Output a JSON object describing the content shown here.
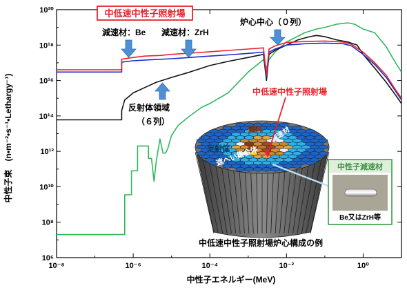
{
  "chart_data": {
    "type": "line",
    "xlabel": "中性子エネルギー(MeV)",
    "ylabel": "中性子束　(n•m⁻²•s⁻¹•Lethargy⁻¹)",
    "xscale": "log",
    "yscale": "log",
    "xlim": [
      1e-08,
      10
    ],
    "ylim": [
      1000000.0,
      1e+20
    ],
    "x_ticks": [
      {
        "value": 1e-08,
        "label": "10⁻⁸"
      },
      {
        "value": 1e-06,
        "label": "10⁻⁶"
      },
      {
        "value": 0.0001,
        "label": "10⁻⁴"
      },
      {
        "value": 0.01,
        "label": "10⁻²"
      },
      {
        "value": 1,
        "label": "10⁰"
      }
    ],
    "y_ticks": [
      {
        "value": 1000000.0,
        "label": "10⁶"
      },
      {
        "value": 100000000.0,
        "label": "10⁸"
      },
      {
        "value": 10000000000.0,
        "label": "10¹⁰"
      },
      {
        "value": 1000000000000.0,
        "label": "10¹²"
      },
      {
        "value": 100000000000000.0,
        "label": "10¹⁴"
      },
      {
        "value": 1e+16,
        "label": "10¹⁶"
      },
      {
        "value": 1e+18,
        "label": "10¹⁸"
      },
      {
        "value": 1e+20,
        "label": "10²⁰"
      }
    ],
    "series": [
      {
        "name": "",
        "color": "#e8202a",
        "points": [
          [
            1e-08,
            4e+16
          ],
          [
            5e-07,
            4e+16
          ],
          [
            5e-07,
            1.6e+17
          ],
          [
            1e-06,
            2e+17
          ],
          [
            2e-06,
            2.4e+17
          ],
          [
            5e-06,
            2.6e+17
          ],
          [
            1e-05,
            3e+17
          ],
          [
            3e-05,
            3.5e+17
          ],
          [
            0.0001,
            4.2e+17
          ],
          [
            0.0003,
            5e+17
          ],
          [
            0.001,
            6e+17
          ],
          [
            0.0025,
            7e+17
          ],
          [
            0.003,
            2e+16
          ],
          [
            0.0035,
            6e+17
          ],
          [
            0.005,
            9e+17
          ],
          [
            0.01,
            1.4e+18
          ],
          [
            0.03,
            1.6e+18
          ],
          [
            0.1,
            1.7e+18
          ],
          [
            0.3,
            1.5e+18
          ],
          [
            0.5,
            1.1e+18
          ],
          [
            1,
            4e+17
          ],
          [
            2,
            1e+17
          ],
          [
            4,
            2e+16
          ],
          [
            7,
            3000000000000000.0
          ],
          [
            10,
            1000000000000000.0
          ]
        ]
      },
      {
        "name": "",
        "color": "#1a2ccc",
        "points": [
          [
            1e-08,
            3e+16
          ],
          [
            5e-07,
            3e+16
          ],
          [
            5e-07,
            1.1e+17
          ],
          [
            1e-06,
            1.3e+17
          ],
          [
            3e-06,
            1.5e+17
          ],
          [
            1e-05,
            1.7e+17
          ],
          [
            3e-05,
            2e+17
          ],
          [
            0.0001,
            2.4e+17
          ],
          [
            0.0003,
            2.8e+17
          ],
          [
            0.001,
            3.4e+17
          ],
          [
            0.0025,
            4e+17
          ],
          [
            0.003,
            1.5e+16
          ],
          [
            0.0035,
            4e+17
          ],
          [
            0.005,
            6e+17
          ],
          [
            0.01,
            1e+18
          ],
          [
            0.03,
            1.2e+18
          ],
          [
            0.1,
            1.3e+18
          ],
          [
            0.3,
            1.2e+18
          ],
          [
            0.5,
            9e+17
          ],
          [
            1,
            3e+17
          ],
          [
            2,
            8e+16
          ],
          [
            4,
            1.5e+16
          ],
          [
            7,
            2500000000000000.0
          ],
          [
            10,
            800000000000000.0
          ]
        ]
      },
      {
        "name": "",
        "color": "#111111",
        "points": [
          [
            1e-08,
            60000000000000.0
          ],
          [
            5e-07,
            60000000000000.0
          ],
          [
            5e-07,
            200000000000000.0
          ],
          [
            6e-07,
            800000000000000.0
          ],
          [
            1e-06,
            2000000000000000.0
          ],
          [
            2e-06,
            4000000000000000.0
          ],
          [
            4e-06,
            8000000000000000.0
          ],
          [
            1e-05,
            1.5e+16
          ],
          [
            3e-05,
            3e+16
          ],
          [
            0.0001,
            7e+16
          ],
          [
            0.0003,
            1.2e+17
          ],
          [
            0.001,
            2e+17
          ],
          [
            0.0025,
            3e+17
          ],
          [
            0.003,
            1e+16
          ],
          [
            0.0035,
            3e+17
          ],
          [
            0.005,
            5e+17
          ],
          [
            0.01,
            1e+18
          ],
          [
            0.02,
            2e+18
          ],
          [
            0.04,
            3e+18
          ],
          [
            0.06,
            3.5e+18
          ],
          [
            0.1,
            3e+18
          ],
          [
            0.2,
            2e+18
          ],
          [
            0.4,
            1.5e+18
          ],
          [
            0.7,
            1e+18
          ],
          [
            1,
            3e+17
          ],
          [
            2,
            5e+16
          ],
          [
            4,
            8000000000000000.0
          ],
          [
            7,
            1500000000000000.0
          ],
          [
            10,
            500000000000000.0
          ]
        ]
      },
      {
        "name": "",
        "color": "#2eb85c",
        "points": [
          [
            1e-08,
            20000000.0
          ],
          [
            6e-07,
            20000000.0
          ],
          [
            6e-07,
            3500000000.0
          ],
          [
            9e-07,
            3500000000.0
          ],
          [
            9e-07,
            80000000000.0
          ],
          [
            1.3e-06,
            80000000000.0
          ],
          [
            1.3e-06,
            2000000000000.0
          ],
          [
            2.5e-06,
            2000000000000.0
          ],
          [
            2.5e-06,
            400000000000.0
          ],
          [
            3e-06,
            400000000000.0
          ],
          [
            3.5e-06,
            20000000000.0
          ],
          [
            4e-06,
            300000000000.0
          ],
          [
            5e-06,
            5000000000000.0
          ],
          [
            6e-06,
            800000000000.0
          ],
          [
            7e-06,
            800000000000.0
          ],
          [
            8e-06,
            1500000000000.0
          ],
          [
            1e-05,
            8000000000000.0
          ],
          [
            1.5e-05,
            30000000000000.0
          ],
          [
            3e-05,
            100000000000000.0
          ],
          [
            6e-05,
            300000000000000.0
          ],
          [
            0.0001,
            500000000000000.0
          ],
          [
            0.0003,
            2000000000000000.0
          ],
          [
            0.001,
            3e+16
          ],
          [
            0.0025,
            1.5e+17
          ],
          [
            0.003,
            5e+16
          ],
          [
            0.0035,
            1.5e+17
          ],
          [
            0.005,
            4e+17
          ],
          [
            0.01,
            1.5e+18
          ],
          [
            0.03,
            5e+18
          ],
          [
            0.06,
            8e+18
          ],
          [
            0.1,
            1e+19
          ],
          [
            0.2,
            1.5e+19
          ],
          [
            0.4,
            1.8e+19
          ],
          [
            0.6,
            1.5e+19
          ],
          [
            1,
            8e+18
          ],
          [
            2,
            5e+18
          ],
          [
            4,
            8e+17
          ],
          [
            7,
            1e+17
          ],
          [
            10,
            3e+16
          ]
        ]
      }
    ],
    "annotations": [
      {
        "id": "mod-be",
        "text": "減速材：Be"
      },
      {
        "id": "mod-zrh",
        "text": "減速材：ZrH"
      },
      {
        "id": "core-center",
        "text": "炉心中心（０列）"
      },
      {
        "id": "reflector",
        "text": "反射体領域"
      },
      {
        "id": "reflector-col",
        "text": "（６列）"
      }
    ]
  },
  "title_box": {
    "text": "中低速中性子照射場"
  },
  "inset": {
    "core_label_field": "中低速中性子照射場",
    "fuel_label": "燃料",
    "moderator_on_core": "減速材",
    "reflector_label": "反射体",
    "shield_label": "遮へい集合体",
    "caption": "中低速中性子照射場炉心構成の例",
    "moderator_box_title": "中性子減速材",
    "moderator_box_caption": "Be又はZrH等"
  },
  "colors": {
    "red_label": "#e8202a",
    "arrow_blue": "#4f8fd6",
    "moderator_box_border": "#4fa85a",
    "moderator_box_header": "#3e9148"
  }
}
